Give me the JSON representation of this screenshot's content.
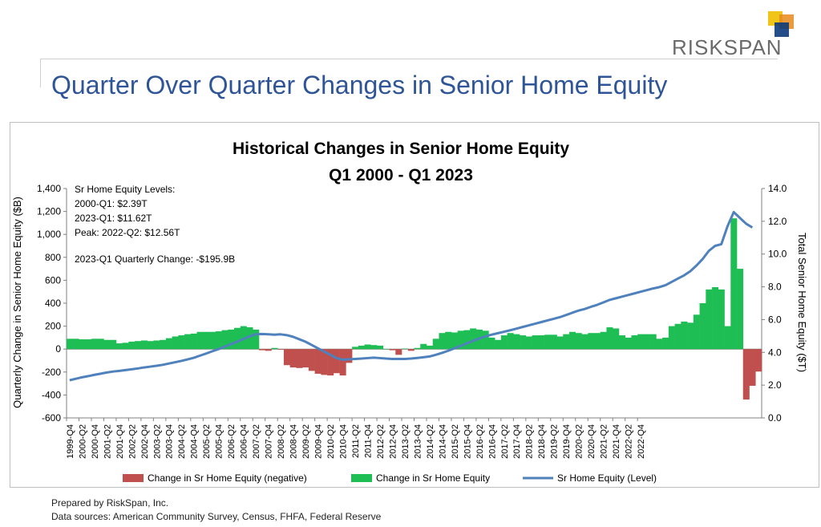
{
  "brand": {
    "name": "RISKSPAN",
    "logo_colors": [
      "#f0c419",
      "#e88a1a",
      "#0d3a7a"
    ]
  },
  "slide_title": "Quarter Over Quarter Changes in Senior Home Equity",
  "footer": {
    "prepared_by": "Prepared by RiskSpan, Inc.",
    "sources": "Data sources: American Community Survey, Census, FHFA, Federal Reserve"
  },
  "chart_data": {
    "type": "bar",
    "title": [
      "Historical Changes in Senior Home Equity",
      "Q1 2000 - Q1 2023"
    ],
    "ylabel_left": "Quarterly Change in Senior Home Equity ($B)",
    "ylabel_right": "Total Senior Home Equity ($T)",
    "ylim_left": [
      -600,
      1400
    ],
    "ylim_right": [
      0,
      14
    ],
    "yticks_left": [
      "-600",
      "-400",
      "-200",
      "0",
      "200",
      "400",
      "600",
      "800",
      "1,000",
      "1,200",
      "1,400"
    ],
    "yticks_right": [
      "0.0",
      "2.0",
      "4.0",
      "6.0",
      "8.0",
      "10.0",
      "12.0",
      "14.0"
    ],
    "annotations": [
      "Sr Home Equity Levels:",
      "2000-Q1: $2.39T",
      "2023-Q1: $11.62T",
      "Peak: 2022-Q2: $12.56T",
      "2023-Q1 Quarterly Change: -$195.9B"
    ],
    "x_tick_labels": [
      "1999-Q4",
      "2000-Q2",
      "2000-Q4",
      "2001-Q2",
      "2001-Q4",
      "2002-Q2",
      "2002-Q4",
      "2003-Q2",
      "2003-Q4",
      "2004-Q2",
      "2004-Q4",
      "2005-Q2",
      "2005-Q4",
      "2006-Q2",
      "2006-Q4",
      "2007-Q2",
      "2007-Q4",
      "2008-Q2",
      "2008-Q4",
      "2009-Q2",
      "2009-Q4",
      "2010-Q2",
      "2010-Q4",
      "2011-Q2",
      "2011-Q4",
      "2012-Q2",
      "2012-Q4",
      "2013-Q2",
      "2013-Q4",
      "2014-Q2",
      "2014-Q4",
      "2015-Q2",
      "2015-Q4",
      "2016-Q2",
      "2016-Q4",
      "2017-Q2",
      "2017-Q4",
      "2018-Q2",
      "2018-Q4",
      "2019-Q2",
      "2019-Q4",
      "2020-Q2",
      "2020-Q4",
      "2021-Q2",
      "2021-Q4",
      "2022-Q2",
      "2022-Q4"
    ],
    "legend": [
      {
        "label": "Change in Sr Home Equity (negative)",
        "color": "#c0504d",
        "kind": "bar"
      },
      {
        "label": "Change in Sr Home Equity",
        "color": "#1fbe54",
        "kind": "bar"
      },
      {
        "label": "Sr Home Equity (Level)",
        "color": "#4f81bd",
        "kind": "line"
      }
    ],
    "series": [
      {
        "name": "Change in Sr Home Equity",
        "axis": "left",
        "values": [
          90,
          90,
          85,
          85,
          90,
          90,
          80,
          80,
          50,
          55,
          65,
          70,
          75,
          70,
          75,
          80,
          95,
          110,
          120,
          130,
          135,
          150,
          150,
          150,
          155,
          165,
          170,
          185,
          200,
          190,
          170,
          -10,
          -15,
          10,
          -5,
          -140,
          -160,
          -165,
          -160,
          -190,
          -215,
          -225,
          -230,
          -210,
          -230,
          -120,
          20,
          30,
          40,
          35,
          30,
          0,
          -10,
          -50,
          5,
          -15,
          10,
          45,
          30,
          90,
          140,
          150,
          145,
          160,
          165,
          180,
          170,
          160,
          100,
          80,
          120,
          140,
          130,
          120,
          110,
          120,
          120,
          125,
          125,
          110,
          130,
          150,
          140,
          130,
          140,
          140,
          150,
          190,
          180,
          120,
          100,
          120,
          130,
          130,
          130,
          90,
          100,
          200,
          220,
          240,
          230,
          300,
          400,
          520,
          540,
          520,
          200,
          1140,
          700,
          -440,
          -320,
          -195.9
        ]
      },
      {
        "name": "Sr Home Equity (Level)",
        "axis": "right",
        "values": [
          2.3,
          2.39,
          2.48,
          2.55,
          2.63,
          2.7,
          2.77,
          2.83,
          2.87,
          2.92,
          2.97,
          3.02,
          3.08,
          3.13,
          3.18,
          3.24,
          3.32,
          3.4,
          3.48,
          3.57,
          3.67,
          3.8,
          3.93,
          4.07,
          4.2,
          4.35,
          4.5,
          4.65,
          4.82,
          4.98,
          5.1,
          5.12,
          5.1,
          5.08,
          5.1,
          5.05,
          4.95,
          4.8,
          4.65,
          4.45,
          4.25,
          4.05,
          3.85,
          3.65,
          3.55,
          3.58,
          3.6,
          3.62,
          3.65,
          3.68,
          3.65,
          3.62,
          3.6,
          3.6,
          3.6,
          3.62,
          3.66,
          3.7,
          3.75,
          3.85,
          3.97,
          4.1,
          4.25,
          4.4,
          4.55,
          4.7,
          4.85,
          4.98,
          5.08,
          5.17,
          5.26,
          5.35,
          5.45,
          5.55,
          5.65,
          5.75,
          5.85,
          5.95,
          6.05,
          6.15,
          6.28,
          6.42,
          6.55,
          6.65,
          6.78,
          6.9,
          7.05,
          7.2,
          7.3,
          7.4,
          7.5,
          7.6,
          7.7,
          7.8,
          7.9,
          7.98,
          8.1,
          8.3,
          8.5,
          8.7,
          8.95,
          9.3,
          9.7,
          10.2,
          10.5,
          10.6,
          11.7,
          12.56,
          12.2,
          11.85,
          11.62
        ]
      }
    ]
  }
}
